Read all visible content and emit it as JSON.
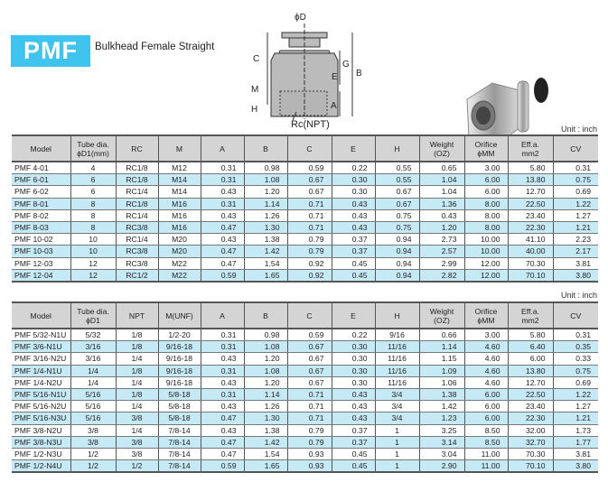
{
  "header": {
    "badge": "PMF",
    "subtitle": "Bulkhead Female Straight"
  },
  "diagram": {
    "labels": {
      "d": "ϕD",
      "c": "C",
      "g": "G",
      "e": "E",
      "b": "B",
      "m": "M",
      "a": "A",
      "h": "H",
      "rc": "Rc(NPT)"
    }
  },
  "colors": {
    "accent": "#3fc3ef",
    "row_alt": "#c6e9f6",
    "header_bg": "#d4d4d4"
  },
  "table1": {
    "unit": "Unit : inch",
    "headers": [
      "Model",
      "Tube dia.\nϕD1(mm)",
      "RC",
      "M",
      "A",
      "B",
      "C",
      "E",
      "H",
      "Weight\n(OZ)",
      "Orifice\nϕMM",
      "Eff.a.\nmm2",
      "CV"
    ],
    "rows": [
      [
        "PMF 4-01",
        "4",
        "RC1/8",
        "M12",
        "0.31",
        "0.98",
        "0.59",
        "0.22",
        "0.55",
        "0.65",
        "3.00",
        "5.80",
        "0.31"
      ],
      [
        "PMF 6-01",
        "6",
        "RC1/8",
        "M14",
        "0.31",
        "1.08",
        "0.67",
        "0.30",
        "0.55",
        "1.04",
        "6.00",
        "13.80",
        "0.75"
      ],
      [
        "PMF 6-02",
        "6",
        "RC1/4",
        "M14",
        "0.43",
        "1.20",
        "0.67",
        "0.30",
        "0.67",
        "1.04",
        "6.00",
        "12.70",
        "0.69"
      ],
      [
        "PMF 8-01",
        "8",
        "RC1/8",
        "M16",
        "0.31",
        "1.14",
        "0.71",
        "0.43",
        "0.67",
        "1.36",
        "8.00",
        "22.50",
        "1.22"
      ],
      [
        "PMF 8-02",
        "8",
        "RC1/4",
        "M16",
        "0.43",
        "1.26",
        "0.71",
        "0.43",
        "0.75",
        "0.43",
        "8.00",
        "23.40",
        "1.27"
      ],
      [
        "PMF 8-03",
        "8",
        "RC3/8",
        "M16",
        "0.47",
        "1.30",
        "0.71",
        "0.43",
        "0.75",
        "1.20",
        "8.00",
        "22.30",
        "1.21"
      ],
      [
        "PMF 10-02",
        "10",
        "RC1/4",
        "M20",
        "0.43",
        "1.38",
        "0.79",
        "0.37",
        "0.94",
        "2.73",
        "10.00",
        "41.10",
        "2.23"
      ],
      [
        "PMF 10-03",
        "10",
        "RC3/8",
        "M20",
        "0.47",
        "1.42",
        "0.79",
        "0.37",
        "0.94",
        "2.57",
        "10.00",
        "40.00",
        "2.17"
      ],
      [
        "PMF 12-03",
        "12",
        "RC3/8",
        "M22",
        "0.47",
        "1.54",
        "0.92",
        "0.45",
        "0.94",
        "2.99",
        "12.00",
        "70.30",
        "3.81"
      ],
      [
        "PMF 12-04",
        "12",
        "RC1/2",
        "M22",
        "0.59",
        "1.65",
        "0.92",
        "0.45",
        "0.94",
        "2.82",
        "12.00",
        "70.10",
        "3.80"
      ]
    ]
  },
  "table2": {
    "unit": "Unit : inch",
    "headers": [
      "Model",
      "Tube dia.\nϕD1",
      "NPT",
      "M(UNF)",
      "A",
      "B",
      "C",
      "E",
      "H",
      "Weight\n(OZ)",
      "Orifice\nϕMM",
      "Eff.a.\nmm2",
      "CV"
    ],
    "rows": [
      [
        "PMF 5/32-N1U",
        "5/32",
        "1/8",
        "1/2-20",
        "0.31",
        "0.98",
        "0.59",
        "0.22",
        "9/16",
        "0.66",
        "3.00",
        "5.80",
        "0.31"
      ],
      [
        "PMF 3/6-N1U",
        "3/16",
        "1/8",
        "9/16-18",
        "0.31",
        "1.08",
        "0.67",
        "0.30",
        "11/16",
        "1.14",
        "4.60",
        "6.40",
        "0.35"
      ],
      [
        "PMF 3/16-N2U",
        "3/16",
        "1/4",
        "9/16-18",
        "0.43",
        "1.20",
        "0.67",
        "0.30",
        "11/16",
        "1.15",
        "4.60",
        "6.00",
        "0.33"
      ],
      [
        "PMF 1/4-N1U",
        "1/4",
        "1/8",
        "9/16-18",
        "0.31",
        "1.08",
        "0.67",
        "0.30",
        "11/16",
        "1.09",
        "4.60",
        "13.80",
        "0.75"
      ],
      [
        "PMF 1/4-N2U",
        "1/4",
        "1/4",
        "9/16-18",
        "0.43",
        "1.20",
        "0.67",
        "0.30",
        "11/16",
        "1.06",
        "4.60",
        "12.70",
        "0.69"
      ],
      [
        "PMF 5/16-N1U",
        "5/16",
        "1/8",
        "5/8-18",
        "0.31",
        "1.14",
        "0.71",
        "0.43",
        "3/4",
        "1.38",
        "6.00",
        "22.50",
        "1.22"
      ],
      [
        "PMF 5/16-N2U",
        "5/16",
        "1/4",
        "5/8-18",
        "0.43",
        "1.26",
        "0.71",
        "0.43",
        "3/4",
        "1.42",
        "6.00",
        "23.40",
        "1.27"
      ],
      [
        "PMF 5/16-N3U",
        "5/16",
        "3/8",
        "5/8-18",
        "0.47",
        "1.30",
        "0.71",
        "0.43",
        "3/4",
        "1.23",
        "6.00",
        "22.30",
        "1.21"
      ],
      [
        "PMF 3/8-N2U",
        "3/8",
        "1/4",
        "7/8-14",
        "0.43",
        "1.38",
        "0.79",
        "0.37",
        "1",
        "3.25",
        "8.50",
        "32.00",
        "1.73"
      ],
      [
        "PMF 3/8-N3U",
        "3/8",
        "3/8",
        "7/8-14",
        "0.47",
        "1.42",
        "0.79",
        "0.37",
        "1",
        "3.14",
        "8.50",
        "32.70",
        "1.77"
      ],
      [
        "PMF 1/2-N3U",
        "1/2",
        "3/8",
        "7/8-14",
        "0.47",
        "1.54",
        "0.93",
        "0.45",
        "1",
        "3.04",
        "11.00",
        "70.30",
        "3.81"
      ],
      [
        "PMF 1/2-N4U",
        "1/2",
        "1/2",
        "7/8-14",
        "0.59",
        "1.65",
        "0.93",
        "0.45",
        "1",
        "2.90",
        "11.00",
        "70.10",
        "3.80"
      ]
    ]
  }
}
